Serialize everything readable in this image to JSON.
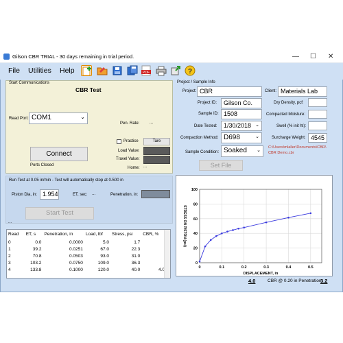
{
  "window": {
    "title": "Gilson CBR TRIAL - 30 days remaining in trial period.",
    "minimize": "—",
    "maximize": "☐",
    "close": "✕"
  },
  "menu": {
    "file": "File",
    "utilities": "Utilities",
    "help": "Help",
    "pdf_label": "PDF"
  },
  "comm": {
    "legend": "Start Communications",
    "title": "CBR Test",
    "read_port_label": "Read Port:",
    "port_value": "COM1",
    "pen_rate_label": "Pen. Rate:",
    "pen_rate_value": "...",
    "practice_label": "Practice",
    "tare_label": "Tare",
    "load_value_label": "Load Value:",
    "travel_value_label": "Travel Value:",
    "home_label": "Home:",
    "home_value": "...",
    "connect_label": "Connect",
    "status": "Ports Closed"
  },
  "project": {
    "legend": "Project / Sample Info",
    "project_label": "Project:",
    "project_value": "CBR",
    "client_label": "Client:",
    "client_value": "Materials Lab",
    "project_id_label": "Project ID:",
    "project_id_value": "Gilson Co.",
    "dry_density_label": "Dry Density, pcf:",
    "dry_density_value": "",
    "sample_id_label": "Sample ID:",
    "sample_id_value": "1508",
    "compacted_moisture_label": "Compacted Moisture:",
    "compacted_moisture_value": "",
    "date_tested_label": "Date Tested:",
    "date_tested_value": "1/30/2018",
    "swell_label": "Swell (% init ht):",
    "swell_value": "",
    "compaction_label": "Compaction Method:",
    "compaction_value": "D698",
    "surcharge_label": "Surcharge Weight:",
    "surcharge_value": "4545",
    "sample_condition_label": "Sample Condition:",
    "sample_condition_value": "Soaked",
    "file_path": "C:\\Users\\mlaller\\Documents\\CBR\\ CBR Demo.cbr",
    "set_file_label": "Set File"
  },
  "run": {
    "info": "Run Test at 0.05 in/min - Test will automatically stop at 0.500 in",
    "piston_label": "Piston Dia, in:",
    "piston_value": "1.954",
    "et_sec_label": "ET, sec:",
    "et_sec_value": "...",
    "penetration_label": "Penetration, in:",
    "start_label": "Start Test",
    "dots": "..."
  },
  "table": {
    "headers": [
      "Read",
      "ET, s",
      "Penetration, in",
      "Load, lbf",
      "Stress, psi",
      "CBR, %"
    ],
    "rows": [
      [
        "0",
        "0.0",
        "0.0000",
        "5.0",
        "1.7",
        ""
      ],
      [
        "1",
        "39.2",
        "0.0251",
        "67.0",
        "22.3",
        ""
      ],
      [
        "2",
        "70.8",
        "0.0503",
        "93.0",
        "31.0",
        ""
      ],
      [
        "3",
        "103.2",
        "0.0750",
        "109.0",
        "36.3",
        ""
      ],
      [
        "4",
        "133.8",
        "0.1000",
        "120.0",
        "40.0",
        "4.0"
      ]
    ]
  },
  "footer": {
    "cbr_01_value": "4.0",
    "cbr_02_label": "CBR @ 0.20 in Penetration:",
    "cbr_02_value": "3.2"
  },
  "colors": {
    "accent": "#3a3adf",
    "panel": "#f3f1d8",
    "window": "#cfe0f4",
    "path": "#c0392b"
  },
  "chart_data": {
    "type": "line",
    "title": "",
    "xlabel": "DISPLACEMENT, in",
    "ylabel": "STRESS ON PISTON (psi)",
    "xlim": [
      0,
      0.55
    ],
    "ylim": [
      0,
      100
    ],
    "xticks": [
      "0",
      "0.1",
      "0.2",
      "0.3",
      "0.4",
      "0.5"
    ],
    "yticks": [
      "0",
      "20",
      "40",
      "60",
      "80",
      "100"
    ],
    "grid": true,
    "series": [
      {
        "x": [
          0.0,
          0.025,
          0.05,
          0.075,
          0.1,
          0.125,
          0.15,
          0.175,
          0.2,
          0.3,
          0.4,
          0.5
        ],
        "values": [
          1.7,
          22.3,
          31.0,
          36.3,
          40.0,
          42.5,
          44.5,
          46.5,
          48.0,
          55.0,
          61.5,
          67.5
        ]
      }
    ]
  }
}
